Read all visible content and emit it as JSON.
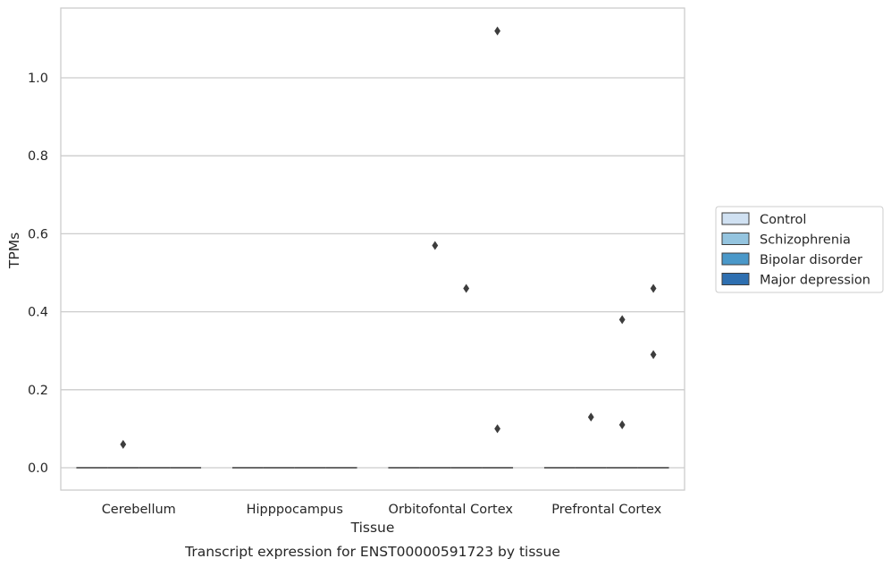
{
  "chart_data": {
    "type": "boxplot",
    "xlabel": "Tissue",
    "ylabel": "TPMs",
    "caption": "Transcript expression for ENST00000591723 by tissue",
    "ylim": [
      -0.055,
      1.18
    ],
    "yticks": [
      0.0,
      0.2,
      0.4,
      0.6,
      0.8,
      1.0
    ],
    "ytick_labels": [
      "0.0",
      "0.2",
      "0.4",
      "0.6",
      "0.8",
      "1.0"
    ],
    "grid": "horizontal",
    "legend_position": "right",
    "categories": [
      "Cerebellum",
      "Hipppocampus",
      "Orbitofontal Cortex",
      "Prefrontal Cortex"
    ],
    "series": [
      {
        "name": "Control",
        "color": "#d0e1f2",
        "median": [
          0,
          0,
          0,
          0
        ],
        "outliers": [
          [],
          [],
          [],
          []
        ]
      },
      {
        "name": "Schizophrenia",
        "color": "#94c4df",
        "median": [
          0,
          0,
          0,
          0
        ],
        "outliers": [
          [
            0.06
          ],
          [],
          [
            0.57
          ],
          [
            0.13
          ]
        ]
      },
      {
        "name": "Bipolar disorder",
        "color": "#4a98c9",
        "median": [
          0,
          0,
          0,
          0
        ],
        "outliers": [
          [],
          [],
          [
            0.46
          ],
          [
            0.38,
            0.11
          ]
        ]
      },
      {
        "name": "Major depression",
        "color": "#2e6fb0",
        "median": [
          0,
          0,
          0,
          0
        ],
        "outliers": [
          [],
          [],
          [
            1.12,
            0.1
          ],
          [
            0.46,
            0.29
          ]
        ]
      }
    ]
  }
}
